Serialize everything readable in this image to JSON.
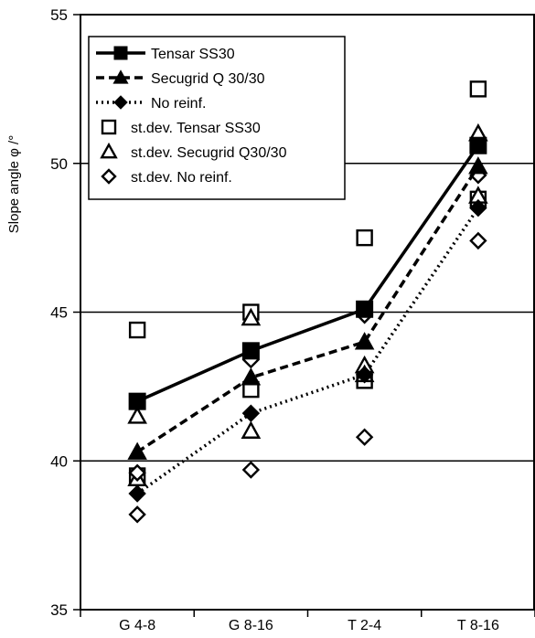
{
  "chart_data": {
    "type": "line",
    "title": "",
    "xlabel": "",
    "ylabel": "Slope angle φ /°",
    "categories": [
      "G 4-8",
      "G 8-16",
      "T 2-4",
      "T 8-16"
    ],
    "ylim": [
      35,
      55
    ],
    "yticks": [
      35,
      40,
      45,
      50,
      55
    ],
    "grid": "horizontal",
    "legend_position": "top-left",
    "series": [
      {
        "name": "Tensar SS30",
        "kind": "line",
        "line_style": "solid",
        "marker": "square-filled",
        "values": [
          42.0,
          43.7,
          45.1,
          50.6
        ]
      },
      {
        "name": "Secugrid Q 30/30",
        "kind": "line",
        "line_style": "dashed",
        "marker": "triangle-filled",
        "values": [
          40.3,
          42.8,
          44.0,
          49.9
        ]
      },
      {
        "name": "No reinf.",
        "kind": "line",
        "line_style": "dotted",
        "marker": "diamond-filled",
        "values": [
          38.9,
          41.6,
          42.9,
          48.5
        ]
      },
      {
        "name": "st.dev. Tensar SS30",
        "kind": "scatter",
        "marker": "square-open",
        "points": [
          [
            "G 4-8",
            44.4
          ],
          [
            "G 4-8",
            39.5
          ],
          [
            "G 8-16",
            45.0
          ],
          [
            "G 8-16",
            42.4
          ],
          [
            "T 2-4",
            47.5
          ],
          [
            "T 2-4",
            42.7
          ],
          [
            "T 8-16",
            52.5
          ],
          [
            "T 8-16",
            48.8
          ]
        ]
      },
      {
        "name": "st.dev. Secugrid Q30/30",
        "kind": "scatter",
        "marker": "triangle-open",
        "points": [
          [
            "G 4-8",
            41.5
          ],
          [
            "G 4-8",
            39.4
          ],
          [
            "G 8-16",
            44.8
          ],
          [
            "G 8-16",
            41.0
          ],
          [
            "T 2-4",
            43.2
          ],
          [
            "T 2-4",
            42.9
          ],
          [
            "T 8-16",
            51.0
          ],
          [
            "T 8-16",
            48.9
          ]
        ]
      },
      {
        "name": "st.dev. No reinf.",
        "kind": "scatter",
        "marker": "diamond-open",
        "points": [
          [
            "G 4-8",
            39.6
          ],
          [
            "G 4-8",
            38.2
          ],
          [
            "G 8-16",
            43.4
          ],
          [
            "G 8-16",
            39.7
          ],
          [
            "T 2-4",
            44.9
          ],
          [
            "T 2-4",
            40.8
          ],
          [
            "T 8-16",
            49.6
          ],
          [
            "T 8-16",
            47.4
          ]
        ]
      }
    ]
  }
}
